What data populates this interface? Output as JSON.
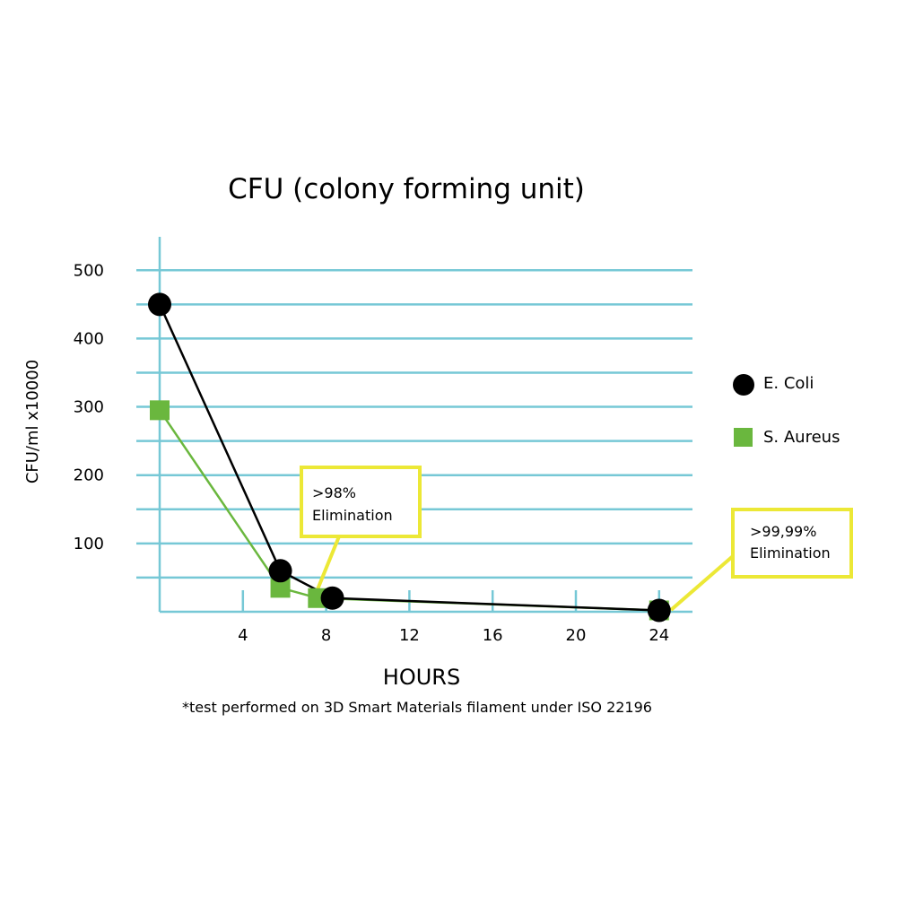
{
  "chart_data": {
    "type": "line",
    "title": "CFU (colony forming unit)",
    "xlabel": "HOURS",
    "ylabel": "CFU/ml x10000",
    "footnote": "*test performed on 3D Smart Materials filament under ISO 22196",
    "x_ticks": [
      "4",
      "8",
      "12",
      "16",
      "20",
      "24"
    ],
    "x_tick_values": [
      4,
      8,
      12,
      16,
      20,
      24
    ],
    "y_ticks": [
      "100",
      "200",
      "300",
      "400",
      "500"
    ],
    "y_tick_values": [
      100,
      200,
      300,
      400,
      500
    ],
    "xlim": [
      0,
      25.5
    ],
    "ylim": [
      0,
      500
    ],
    "grid": "horizontal",
    "legend_position": "right",
    "series": [
      {
        "name": "E. Coli",
        "marker": "circle",
        "color": "#000000",
        "points": [
          [
            0,
            450
          ],
          [
            5.8,
            60
          ],
          [
            8.3,
            20
          ],
          [
            24,
            2
          ]
        ]
      },
      {
        "name": "S. Aureus",
        "marker": "square",
        "color": "#6ab73e",
        "points": [
          [
            0,
            295
          ],
          [
            5.8,
            35
          ],
          [
            7.6,
            20
          ],
          [
            24,
            2
          ]
        ]
      }
    ],
    "annotations": [
      {
        "line1": ">98%",
        "line2": "Elimination"
      },
      {
        "line1": ">99,99%",
        "line2": "Elimination"
      }
    ],
    "colors": {
      "grid": "#76c8d6",
      "annotation_border": "#ece836",
      "ecoli": "#000000",
      "saureus": "#6ab73e"
    }
  }
}
